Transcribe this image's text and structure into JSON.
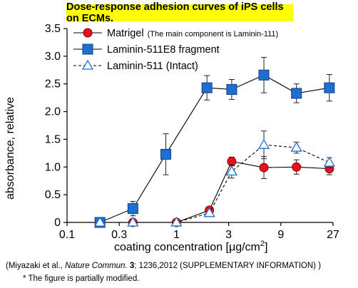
{
  "page": {
    "title": "Dose-response adhesion curves of iPS cells on ECMs.",
    "citation_pre": "(Miyazaki et al., ",
    "citation_journal": "Nature Commun.",
    "citation_vol": " 3",
    "citation_post": "; 1236,2012   (SUPPLEMENTARY INFORMATION) )",
    "note": "* The figure is partially modified."
  },
  "chart_data": {
    "type": "line",
    "xlabel_main": "coating concentration [μg/cm",
    "xlabel_sup": "2",
    "xlabel_close": "]",
    "ylabel": "absorbance, relative",
    "x_scale": "log",
    "xlim": [
      0.1,
      27
    ],
    "ylim": [
      0,
      3.5
    ],
    "x_ticks": [
      "0.1",
      "0.3",
      "1",
      "3",
      "9",
      "27"
    ],
    "x_tick_values": [
      0.1,
      0.3,
      1,
      3,
      9,
      27
    ],
    "y_ticks": [
      "0",
      "0.5",
      "1.0",
      "1.5",
      "2.0",
      "2.5",
      "3.0",
      "3.5"
    ],
    "y_tick_values": [
      0,
      0.5,
      1.0,
      1.5,
      2.0,
      2.5,
      3.0,
      3.5
    ],
    "grid": false,
    "legend_position": "top-left",
    "series": [
      {
        "name": "Matrigel",
        "legend_note": "(The main component is Laminin-111)",
        "color": "#e8101e",
        "edge": "#8a0000",
        "marker": "circle",
        "line": "solid",
        "points": [
          {
            "x": 0.2,
            "y": 0.0,
            "err": 0.0
          },
          {
            "x": 0.4,
            "y": 0.0,
            "err": 0.0
          },
          {
            "x": 1.0,
            "y": 0.0,
            "err": 0.0
          },
          {
            "x": 2.0,
            "y": 0.22,
            "err": 0.03
          },
          {
            "x": 3.2,
            "y": 1.1,
            "err": 0.08
          },
          {
            "x": 6.3,
            "y": 0.99,
            "err": 0.2
          },
          {
            "x": 12.5,
            "y": 1.0,
            "err": 0.13
          },
          {
            "x": 25.0,
            "y": 0.97,
            "err": 0.11
          }
        ]
      },
      {
        "name": "Laminin-511E8 fragment",
        "color": "#1e6fd0",
        "edge": "#0b3f86",
        "marker": "square",
        "line": "solid",
        "points": [
          {
            "x": 0.2,
            "y": 0.0,
            "err": 0.0
          },
          {
            "x": 0.4,
            "y": 0.25,
            "err": 0.13
          },
          {
            "x": 0.8,
            "y": 1.23,
            "err": 0.37
          },
          {
            "x": 1.9,
            "y": 2.43,
            "err": 0.22
          },
          {
            "x": 3.2,
            "y": 2.4,
            "err": 0.18
          },
          {
            "x": 6.3,
            "y": 2.66,
            "err": 0.32
          },
          {
            "x": 12.5,
            "y": 2.33,
            "err": 0.17
          },
          {
            "x": 25.0,
            "y": 2.43,
            "err": 0.24
          }
        ]
      },
      {
        "name": "Laminin-511 (Intact)",
        "color": "#ffffff",
        "edge": "#1e6fd0",
        "marker": "triangle",
        "line": "dashed",
        "points": [
          {
            "x": 0.2,
            "y": 0.0,
            "err": 0.0
          },
          {
            "x": 0.4,
            "y": 0.0,
            "err": 0.0
          },
          {
            "x": 1.0,
            "y": 0.0,
            "err": 0.0
          },
          {
            "x": 2.0,
            "y": 0.17,
            "err": 0.03
          },
          {
            "x": 3.2,
            "y": 0.92,
            "err": 0.12
          },
          {
            "x": 6.3,
            "y": 1.4,
            "err": 0.25
          },
          {
            "x": 12.5,
            "y": 1.35,
            "err": 0.1
          },
          {
            "x": 25.0,
            "y": 1.08,
            "err": 0.09
          }
        ]
      }
    ]
  }
}
